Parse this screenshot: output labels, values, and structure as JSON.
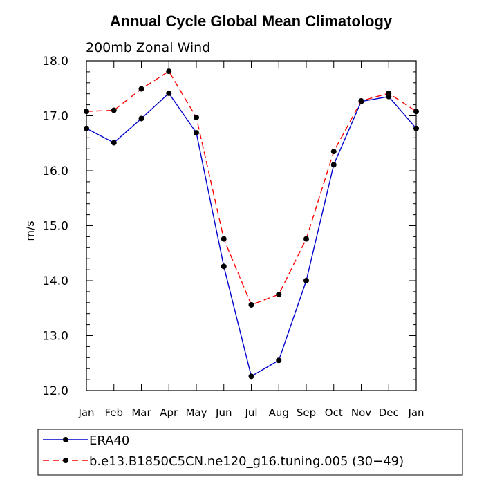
{
  "chart_data": {
    "type": "line",
    "title": "Annual Cycle Global Mean Climatology",
    "subtitle": "200mb Zonal Wind",
    "ylabel": "m/s",
    "xlabel": "",
    "categories": [
      "Jan",
      "Feb",
      "Mar",
      "Apr",
      "May",
      "Jun",
      "Jul",
      "Aug",
      "Sep",
      "Oct",
      "Nov",
      "Dec",
      "Jan"
    ],
    "ylim": [
      12.0,
      18.0
    ],
    "yticks": [
      "12.0",
      "13.0",
      "14.0",
      "15.0",
      "16.0",
      "17.0",
      "18.0"
    ],
    "legend_position": "bottom",
    "series": [
      {
        "name": "ERA40",
        "color": "#0000cc",
        "dash": "solid",
        "values": [
          16.77,
          16.51,
          16.95,
          17.41,
          16.69,
          14.26,
          12.26,
          12.55,
          14.0,
          16.11,
          17.26,
          17.35,
          16.77
        ]
      },
      {
        "name": "b.e13.B1850C5CN.ne120_g16.tuning.005 (30−49)",
        "color": "#ff0000",
        "dash": "dashed",
        "values": [
          17.08,
          17.1,
          17.49,
          17.81,
          16.97,
          14.76,
          13.56,
          13.75,
          14.76,
          16.35,
          17.27,
          17.41,
          17.08
        ]
      }
    ]
  }
}
